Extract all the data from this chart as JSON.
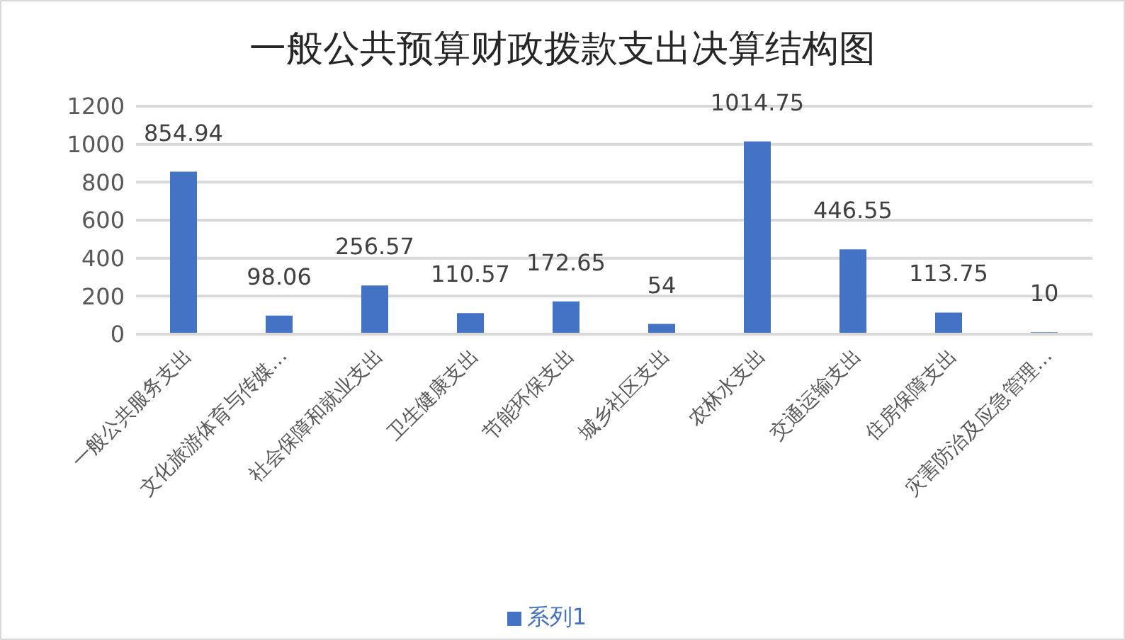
{
  "chart_data": {
    "type": "bar",
    "title": "一般公共预算财政拨款支出决算结构图",
    "categories": [
      "一般公共服务支出",
      "文化旅游体育与传媒…",
      "社会保障和就业支出",
      "卫生健康支出",
      "节能环保支出",
      "城乡社区支出",
      "农林水支出",
      "交通运输支出",
      "住房保障支出",
      "灾害防治及应急管理…"
    ],
    "series": [
      {
        "name": "系列1",
        "color": "#4472c4",
        "values": [
          854.94,
          98.06,
          256.57,
          110.57,
          172.65,
          54,
          1014.75,
          446.55,
          113.75,
          10
        ]
      }
    ],
    "ylim": [
      0,
      1200
    ],
    "yticks": [
      0,
      200,
      400,
      600,
      800,
      1000,
      1200
    ],
    "grid": "y",
    "legend": "bottom",
    "data_labels": true
  }
}
